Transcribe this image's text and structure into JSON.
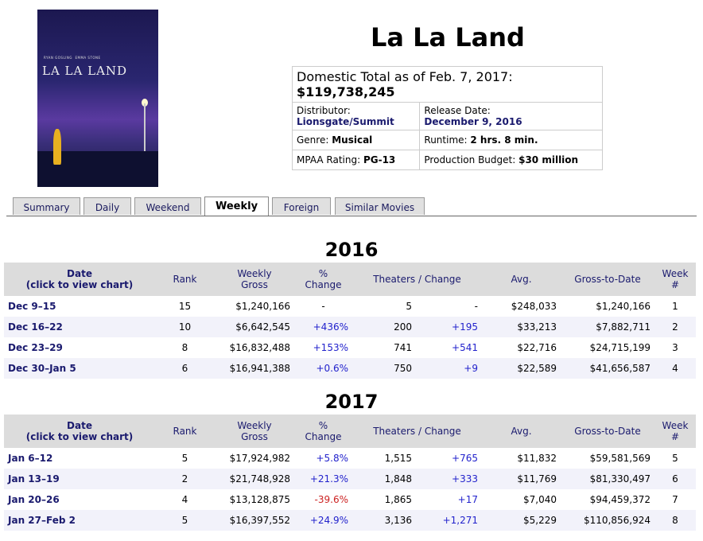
{
  "movie": {
    "title": "La La Land",
    "poster_text": {
      "actors": "RYAN GOSLING   EMMA STONE",
      "logo": "LA LA LAND"
    }
  },
  "info": {
    "total_label": "Domestic Total as of Feb. 7, 2017:",
    "total_value": "$119,738,245",
    "distributor_label": "Distributor:",
    "distributor": "Lionsgate/Summit",
    "release_label": "Release Date:",
    "release": "December 9, 2016",
    "genre_label": "Genre:",
    "genre": "Musical",
    "runtime_label": "Runtime:",
    "runtime": "2 hrs. 8 min.",
    "rating_label": "MPAA Rating:",
    "rating": "PG-13",
    "budget_label": "Production Budget:",
    "budget": "$30 million"
  },
  "tabs": [
    "Summary",
    "Daily",
    "Weekend",
    "Weekly",
    "Foreign",
    "Similar Movies"
  ],
  "headers": {
    "date": "Date",
    "date_sub": "(click to view chart)",
    "rank": "Rank",
    "gross1": "Weekly",
    "gross2": "Gross",
    "pct1": "%",
    "pct2": "Change",
    "theaters": "Theaters / Change",
    "avg": "Avg.",
    "gtd": "Gross-to-Date",
    "week1": "Week",
    "week2": "#"
  },
  "years": [
    {
      "year": "2016",
      "rows": [
        [
          "Dec 9–15",
          "15",
          "$1,240,166",
          "-",
          "5",
          "-",
          "$248,033",
          "$1,240,166",
          "1"
        ],
        [
          "Dec 16–22",
          "10",
          "$6,642,545",
          "+436%",
          "200",
          "+195",
          "$33,213",
          "$7,882,711",
          "2"
        ],
        [
          "Dec 23–29",
          "8",
          "$16,832,488",
          "+153%",
          "741",
          "+541",
          "$22,716",
          "$24,715,199",
          "3"
        ],
        [
          "Dec 30–Jan 5",
          "6",
          "$16,941,388",
          "+0.6%",
          "750",
          "+9",
          "$22,589",
          "$41,656,587",
          "4"
        ]
      ]
    },
    {
      "year": "2017",
      "rows": [
        [
          "Jan 6–12",
          "5",
          "$17,924,982",
          "+5.8%",
          "1,515",
          "+765",
          "$11,832",
          "$59,581,569",
          "5"
        ],
        [
          "Jan 13–19",
          "2",
          "$21,748,928",
          "+21.3%",
          "1,848",
          "+333",
          "$11,769",
          "$81,330,497",
          "6"
        ],
        [
          "Jan 20–26",
          "4",
          "$13,128,875",
          "-39.6%",
          "1,865",
          "+17",
          "$7,040",
          "$94,459,372",
          "7"
        ],
        [
          "Jan 27–Feb 2",
          "5",
          "$16,397,552",
          "+24.9%",
          "3,136",
          "+1,271",
          "$5,229",
          "$110,856,924",
          "8"
        ]
      ]
    }
  ]
}
